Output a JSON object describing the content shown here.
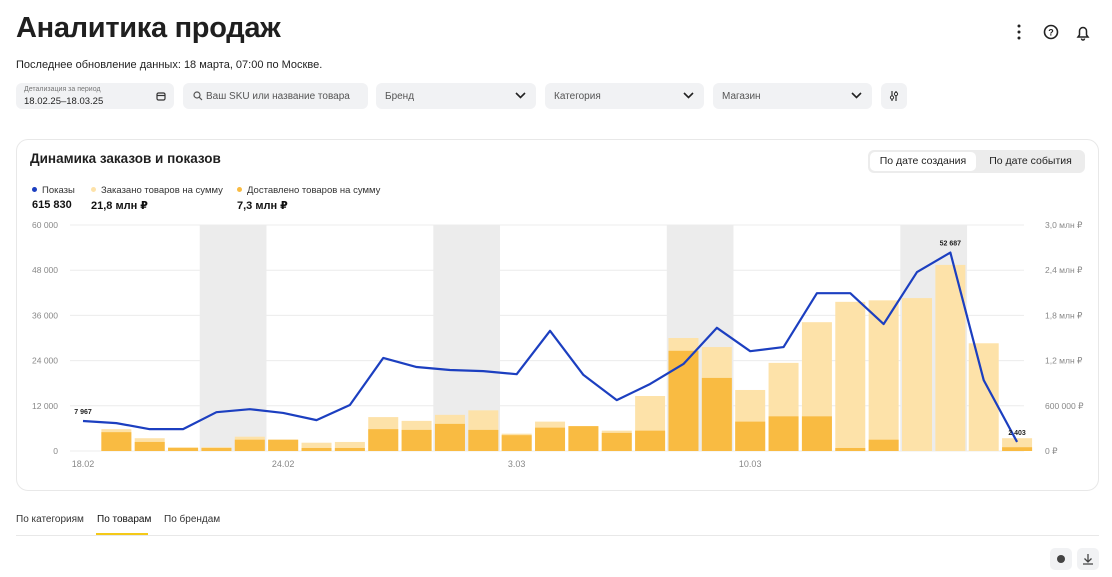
{
  "header": {
    "title": "Аналитика продаж",
    "subtitle": "Последнее обновление данных: 18 марта, 07:00 по Москве."
  },
  "filters": {
    "period_caption": "Детализация за период",
    "period": "18.02.25–18.03.25",
    "search": "Ваш SKU или название товара",
    "brand": "Бренд",
    "category": "Категория",
    "shop": "Магазин"
  },
  "chart_data": {
    "type": "combo",
    "title": "Динамика заказов и показов",
    "toggles": [
      "По дате создания",
      "По дате события"
    ],
    "categories": [
      "18.02",
      null,
      null,
      null,
      null,
      null,
      "24.02",
      null,
      null,
      null,
      null,
      null,
      null,
      "3.03",
      null,
      null,
      null,
      null,
      null,
      null,
      "10.03",
      null,
      null,
      null,
      null,
      null,
      null,
      null,
      null
    ],
    "ylim": [
      0,
      60000
    ],
    "yticks": [
      0,
      {
        "value": 12000,
        "label": "12 000"
      },
      {
        "value": 24000,
        "label": "24 000"
      },
      {
        "value": 36000,
        "label": "36 000"
      },
      {
        "value": 48000,
        "label": "48 000"
      },
      {
        "value": 60000,
        "label": "60 000"
      }
    ],
    "y2lim": [
      0,
      3000000
    ],
    "y2ticks": [
      {
        "value": 0,
        "label": "0 ₽"
      },
      {
        "value": 600000,
        "label": "600 000 ₽"
      },
      {
        "value": 1200000,
        "label": "1,2 млн ₽"
      },
      {
        "value": 1800000,
        "label": "1,8 млн ₽"
      },
      {
        "value": 2400000,
        "label": "2,4 млн ₽"
      },
      {
        "value": 3000000,
        "label": "3,0 млн ₽"
      }
    ],
    "grid": true,
    "series": [
      {
        "name": "Показы",
        "total": "615 830",
        "type": "line",
        "axis": "y",
        "color": "#1c3fc0",
        "values": [
          7967,
          7400,
          5800,
          5800,
          10300,
          11100,
          10100,
          8200,
          12200,
          24700,
          22300,
          21500,
          21200,
          20400,
          31900,
          20200,
          13500,
          17800,
          23100,
          32700,
          26500,
          27600,
          41900,
          41900,
          33700,
          47500,
          52687,
          18800,
          2403
        ],
        "value_labels": [
          "7 967",
          null,
          null,
          null,
          null,
          null,
          null,
          null,
          null,
          null,
          null,
          null,
          null,
          null,
          null,
          null,
          null,
          null,
          null,
          null,
          null,
          null,
          null,
          null,
          null,
          null,
          "52 687",
          null,
          "2 403"
        ]
      },
      {
        "name": "Заказано товаров на сумму",
        "total": "21,8 млн ₽",
        "type": "bar",
        "axis": "y2",
        "color": "#fde2a9",
        "values": [
          null,
          290000,
          170000,
          50000,
          50000,
          190000,
          150000,
          110000,
          120000,
          450000,
          400000,
          480000,
          540000,
          230000,
          390000,
          330000,
          270000,
          730000,
          1500000,
          1380000,
          810000,
          1170000,
          1710000,
          1980000,
          2000000,
          2030000,
          2470000,
          1430000,
          170000
        ]
      },
      {
        "name": "Доставлено товаров на сумму",
        "total": "7,3 млн ₽",
        "type": "bar",
        "axis": "y2",
        "color": "#f9bb42",
        "values": [
          null,
          250000,
          120000,
          40000,
          40000,
          150000,
          150000,
          40000,
          40000,
          290000,
          280000,
          360000,
          280000,
          210000,
          310000,
          330000,
          240000,
          270000,
          1330000,
          970000,
          390000,
          460000,
          460000,
          40000,
          150000,
          0,
          0,
          0,
          50000
        ]
      }
    ]
  },
  "tabs": [
    "По категориям",
    "По товарам",
    "По брендам"
  ]
}
